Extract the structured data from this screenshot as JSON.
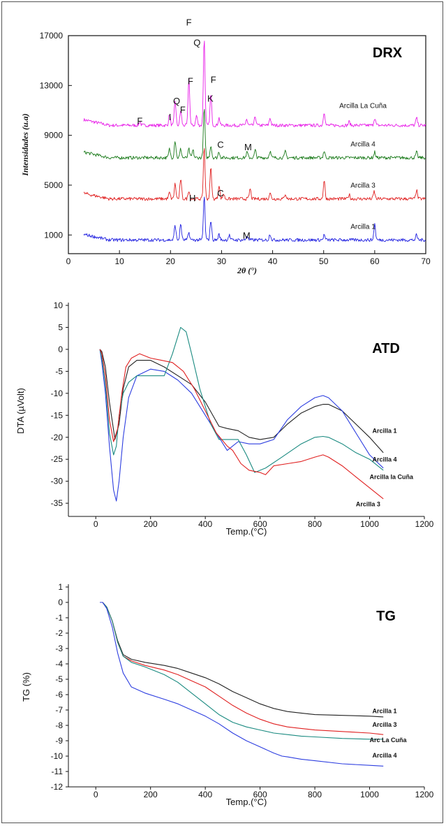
{
  "chart_data": [
    {
      "type": "line",
      "title": "DRX",
      "xlabel": "2θ (°)",
      "ylabel": "Intensidades (u.a)",
      "xlim": [
        0,
        70
      ],
      "ylim": [
        -500,
        17000
      ],
      "x_ticks": [
        0,
        10,
        20,
        30,
        40,
        50,
        60,
        70
      ],
      "y_ticks": [
        1000,
        5000,
        9000,
        13000,
        17000
      ],
      "series": [
        {
          "name": "Arcilla La Cuña",
          "color": "#e81ee8",
          "baseline": 9800,
          "peaks": [
            [
              14,
              300
            ],
            [
              19.8,
              900
            ],
            [
              20.9,
              2000
            ],
            [
              22,
              1200
            ],
            [
              23.6,
              3800
            ],
            [
              25.1,
              800
            ],
            [
              26.6,
              7000
            ],
            [
              27.9,
              2500
            ],
            [
              29.5,
              600
            ],
            [
              34.9,
              500
            ],
            [
              36.6,
              700
            ],
            [
              39.5,
              600
            ],
            [
              50.1,
              1100
            ],
            [
              55,
              300
            ],
            [
              60,
              600
            ],
            [
              68.2,
              600
            ]
          ]
        },
        {
          "name": "Arcilla 4",
          "color": "#1a7a1a",
          "baseline": 7200,
          "peaks": [
            [
              19.8,
              700
            ],
            [
              20.9,
              1400
            ],
            [
              22,
              700
            ],
            [
              23.6,
              700
            ],
            [
              24.4,
              600
            ],
            [
              26.6,
              4000
            ],
            [
              27.9,
              1000
            ],
            [
              29.5,
              500
            ],
            [
              35,
              450
            ],
            [
              36.6,
              600
            ],
            [
              39.5,
              550
            ],
            [
              42.5,
              500
            ],
            [
              50.1,
              550
            ],
            [
              60,
              450
            ],
            [
              68.2,
              450
            ]
          ]
        },
        {
          "name": "Arcilla 3",
          "color": "#e02020",
          "baseline": 3900,
          "peaks": [
            [
              19.8,
              500
            ],
            [
              20.9,
              1200
            ],
            [
              22,
              1600
            ],
            [
              23.6,
              700
            ],
            [
              26.6,
              4200
            ],
            [
              27.9,
              2500
            ],
            [
              29.5,
              1100
            ],
            [
              30.4,
              400
            ],
            [
              35.6,
              800
            ],
            [
              39.5,
              500
            ],
            [
              42.5,
              400
            ],
            [
              50.1,
              1500
            ],
            [
              55,
              350
            ],
            [
              59.9,
              600
            ],
            [
              68.2,
              700
            ]
          ]
        },
        {
          "name": "Arcilla 1",
          "color": "#2020e0",
          "baseline": 600,
          "peaks": [
            [
              20.9,
              1200
            ],
            [
              22,
              1300
            ],
            [
              23.6,
              600
            ],
            [
              26.6,
              3500
            ],
            [
              27.9,
              1600
            ],
            [
              29.5,
              450
            ],
            [
              31.5,
              400
            ],
            [
              35,
              350
            ],
            [
              39.5,
              500
            ],
            [
              50.1,
              400
            ],
            [
              60,
              1300
            ],
            [
              68.2,
              400
            ]
          ]
        }
      ],
      "annotations": [
        {
          "text": "F",
          "x": 23.6,
          "y": 17800
        },
        {
          "text": "Q",
          "x": 25.2,
          "y": 16200
        },
        {
          "text": "F",
          "x": 23.9,
          "y": 13100
        },
        {
          "text": "F",
          "x": 28.4,
          "y": 13200
        },
        {
          "text": "Q",
          "x": 21.2,
          "y": 11500
        },
        {
          "text": "F",
          "x": 22.4,
          "y": 10800
        },
        {
          "text": "K",
          "x": 27.8,
          "y": 11700
        },
        {
          "text": "I",
          "x": 19.9,
          "y": 10200
        },
        {
          "text": "F",
          "x": 14,
          "y": 9900
        },
        {
          "text": "C",
          "x": 29.8,
          "y": 8000
        },
        {
          "text": "M",
          "x": 35.2,
          "y": 7800
        },
        {
          "text": "C",
          "x": 29.8,
          "y": 4100
        },
        {
          "text": "H",
          "x": 24.3,
          "y": 3700
        },
        {
          "text": "M",
          "x": 34.9,
          "y": 700
        }
      ]
    },
    {
      "type": "line",
      "title": "ATD",
      "xlabel": "Temp.(°C)",
      "ylabel": "DTA (µVolt)",
      "xlim": [
        -100,
        1200
      ],
      "ylim": [
        -38,
        10
      ],
      "x_ticks": [
        0,
        200,
        400,
        600,
        800,
        1000,
        1200
      ],
      "y_ticks": [
        10,
        5,
        0,
        -5,
        -10,
        -15,
        -20,
        -25,
        -30,
        -35
      ],
      "series": [
        {
          "name": "Arcilla 1",
          "color": "#222222",
          "x": [
            15,
            22,
            35,
            50,
            70,
            85,
            100,
            120,
            150,
            200,
            250,
            300,
            350,
            400,
            450,
            480,
            520,
            560,
            600,
            650,
            700,
            750,
            800,
            830,
            850,
            900,
            950,
            1000,
            1050
          ],
          "y": [
            0,
            -0.5,
            -4,
            -12,
            -20.5,
            -17,
            -9,
            -4,
            -2.5,
            -2.5,
            -4,
            -6,
            -8,
            -12,
            -17.5,
            -18,
            -18.5,
            -20,
            -20.5,
            -20,
            -17,
            -14.5,
            -13,
            -12.5,
            -12.5,
            -14,
            -17,
            -20,
            -23.5
          ]
        },
        {
          "name": "Arcilla 4",
          "color": "#2d3ee0",
          "x": [
            15,
            22,
            35,
            50,
            65,
            75,
            85,
            100,
            120,
            150,
            200,
            250,
            300,
            350,
            400,
            450,
            480,
            520,
            560,
            600,
            650,
            700,
            750,
            800,
            830,
            850,
            900,
            950,
            1000,
            1050
          ],
          "y": [
            0,
            -3,
            -10,
            -22,
            -32,
            -34.5,
            -30,
            -20,
            -11,
            -6,
            -4.5,
            -5,
            -7,
            -10,
            -15,
            -20,
            -23,
            -21,
            -21.5,
            -21.5,
            -20.5,
            -16,
            -13,
            -11,
            -10.5,
            -11,
            -14,
            -19,
            -24,
            -27
          ]
        },
        {
          "name": "Arcilla la Cuña",
          "color": "#1a8a80",
          "x": [
            15,
            22,
            35,
            50,
            65,
            75,
            85,
            100,
            120,
            150,
            200,
            250,
            280,
            310,
            330,
            350,
            380,
            420,
            450,
            480,
            520,
            550,
            580,
            620,
            680,
            750,
            800,
            830,
            850,
            900,
            950,
            1000,
            1050
          ],
          "y": [
            0,
            -2,
            -8,
            -19,
            -24,
            -22,
            -15,
            -10,
            -7.5,
            -6,
            -6,
            -6,
            -1,
            5,
            4,
            -1,
            -9,
            -17,
            -20.5,
            -20.5,
            -20.5,
            -24,
            -28,
            -27,
            -24.5,
            -21.5,
            -20,
            -19.8,
            -20,
            -21.5,
            -23.5,
            -25,
            -27.5
          ]
        },
        {
          "name": "Arcilla 3",
          "color": "#e02020",
          "x": [
            15,
            22,
            35,
            50,
            65,
            80,
            95,
            110,
            130,
            160,
            200,
            240,
            280,
            320,
            360,
            400,
            440,
            480,
            500,
            530,
            560,
            600,
            620,
            650,
            700,
            750,
            800,
            830,
            850,
            900,
            950,
            1000,
            1050
          ],
          "y": [
            0,
            -1,
            -6,
            -16,
            -21,
            -18,
            -10,
            -4,
            -2,
            -1,
            -2,
            -2.5,
            -3,
            -5,
            -9,
            -14,
            -19,
            -22,
            -23,
            -26,
            -27.5,
            -28,
            -28.5,
            -26.5,
            -26,
            -25.5,
            -24.5,
            -24,
            -24.5,
            -26.5,
            -29,
            -31.5,
            -34
          ]
        }
      ],
      "labels": [
        {
          "text": "Arcilla 1",
          "x": 1010,
          "y": -19
        },
        {
          "text": "Arcilla 4",
          "x": 1010,
          "y": -25.5
        },
        {
          "text": "Arcilla la Cuña",
          "x": 1000,
          "y": -29.5
        },
        {
          "text": "Arcilla 3",
          "x": 950,
          "y": -35.7
        }
      ]
    },
    {
      "type": "line",
      "title": "TG",
      "xlabel": "Temp.(°C)",
      "ylabel": "TG (%)",
      "xlim": [
        -100,
        1200
      ],
      "ylim": [
        -12,
        1
      ],
      "x_ticks": [
        0,
        200,
        400,
        600,
        800,
        1000,
        1200
      ],
      "y_ticks": [
        1,
        0,
        -1,
        -2,
        -3,
        -4,
        -5,
        -6,
        -7,
        -8,
        -9,
        -10,
        -11,
        -12
      ],
      "series": [
        {
          "name": "Arcilla 1",
          "color": "#222222",
          "x": [
            15,
            25,
            40,
            60,
            80,
            100,
            130,
            180,
            250,
            300,
            350,
            400,
            450,
            500,
            550,
            600,
            650,
            700,
            750,
            800,
            900,
            1000,
            1050
          ],
          "y": [
            0,
            0,
            -0.3,
            -1.2,
            -2.5,
            -3.4,
            -3.7,
            -3.9,
            -4.1,
            -4.3,
            -4.6,
            -4.9,
            -5.3,
            -5.8,
            -6.2,
            -6.6,
            -6.9,
            -7.1,
            -7.2,
            -7.3,
            -7.35,
            -7.4,
            -7.45
          ]
        },
        {
          "name": "Arcilla 3",
          "color": "#e02020",
          "x": [
            15,
            25,
            40,
            60,
            80,
            100,
            130,
            180,
            250,
            300,
            350,
            400,
            450,
            500,
            550,
            600,
            650,
            700,
            750,
            800,
            900,
            1000,
            1050
          ],
          "y": [
            0,
            0,
            -0.3,
            -1.2,
            -2.6,
            -3.5,
            -3.8,
            -4.1,
            -4.4,
            -4.7,
            -5.1,
            -5.5,
            -6.1,
            -6.7,
            -7.2,
            -7.6,
            -7.9,
            -8.1,
            -8.2,
            -8.3,
            -8.4,
            -8.5,
            -8.6
          ]
        },
        {
          "name": "Arc La Cuña",
          "color": "#1a8a80",
          "x": [
            15,
            25,
            40,
            60,
            80,
            100,
            130,
            180,
            250,
            300,
            350,
            400,
            450,
            500,
            550,
            600,
            650,
            700,
            750,
            800,
            900,
            1000,
            1050
          ],
          "y": [
            0,
            0,
            -0.3,
            -1.2,
            -2.6,
            -3.5,
            -3.9,
            -4.2,
            -4.7,
            -5.2,
            -5.9,
            -6.6,
            -7.3,
            -7.8,
            -8.1,
            -8.3,
            -8.5,
            -8.6,
            -8.7,
            -8.75,
            -8.85,
            -8.9,
            -8.9
          ]
        },
        {
          "name": "Arcilla 4",
          "color": "#2d3ee0",
          "x": [
            15,
            25,
            40,
            60,
            80,
            100,
            130,
            180,
            250,
            300,
            350,
            400,
            450,
            500,
            550,
            600,
            650,
            680,
            700,
            750,
            800,
            900,
            1000,
            1050
          ],
          "y": [
            0,
            0,
            -0.4,
            -1.6,
            -3.3,
            -4.6,
            -5.5,
            -5.9,
            -6.3,
            -6.6,
            -7.0,
            -7.4,
            -7.9,
            -8.5,
            -9.0,
            -9.4,
            -9.8,
            -10.0,
            -10.05,
            -10.2,
            -10.3,
            -10.5,
            -10.6,
            -10.65
          ]
        }
      ],
      "labels": [
        {
          "text": "Arcilla 1",
          "x": 1010,
          "y": -7.2
        },
        {
          "text": "Arcilla 3",
          "x": 1010,
          "y": -8.1
        },
        {
          "text": "Arc La Cuña",
          "x": 1000,
          "y": -9.1
        },
        {
          "text": "Arcilla 4",
          "x": 1010,
          "y": -10.1
        }
      ]
    }
  ]
}
